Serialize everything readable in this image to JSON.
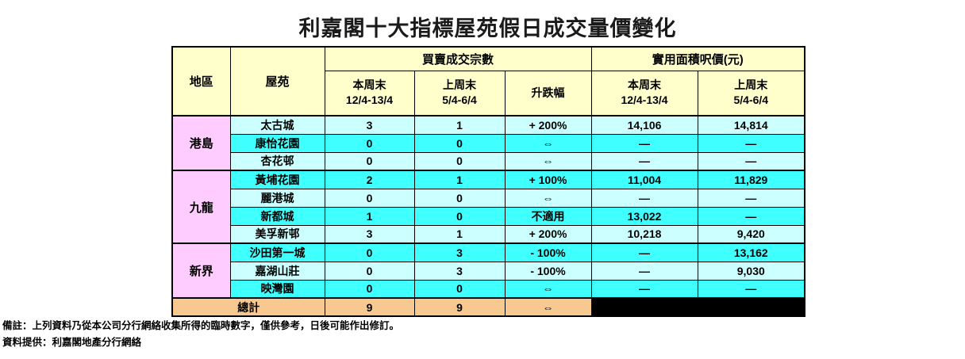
{
  "chart_data": {
    "type": "table",
    "title": "利嘉閣十大指標屋苑假日成交量價變化",
    "headers": {
      "region": "地區",
      "estate": "屋苑",
      "transactions_group": "買賣成交宗數",
      "price_group": "實用面積呎價(元)",
      "this_weekend": "本周末",
      "this_weekend_dates": "12/4-13/4",
      "last_weekend": "上周末",
      "last_weekend_dates": "5/4-6/4",
      "change": "升跌幅"
    },
    "groups": [
      {
        "region": "港島",
        "rows": [
          {
            "estate": "太古城",
            "count_this": "3",
            "count_last": "1",
            "change": "+ 200%",
            "price_this": "14,106",
            "price_last": "14,814"
          },
          {
            "estate": "康怡花園",
            "count_this": "0",
            "count_last": "0",
            "change": "⇔",
            "price_this": "—",
            "price_last": "—"
          },
          {
            "estate": "杏花邨",
            "count_this": "0",
            "count_last": "0",
            "change": "⇔",
            "price_this": "—",
            "price_last": "—"
          }
        ]
      },
      {
        "region": "九龍",
        "rows": [
          {
            "estate": "黃埔花園",
            "count_this": "2",
            "count_last": "1",
            "change": "+ 100%",
            "price_this": "11,004",
            "price_last": "11,829"
          },
          {
            "estate": "麗港城",
            "count_this": "0",
            "count_last": "0",
            "change": "⇔",
            "price_this": "—",
            "price_last": "—"
          },
          {
            "estate": "新都城",
            "count_this": "1",
            "count_last": "0",
            "change": "不適用",
            "price_this": "13,022",
            "price_last": "—"
          },
          {
            "estate": "美孚新邨",
            "count_this": "3",
            "count_last": "1",
            "change": "+ 200%",
            "price_this": "10,218",
            "price_last": "9,420"
          }
        ]
      },
      {
        "region": "新界",
        "rows": [
          {
            "estate": "沙田第一城",
            "count_this": "0",
            "count_last": "3",
            "change": "- 100%",
            "price_this": "—",
            "price_last": "13,162"
          },
          {
            "estate": "嘉湖山莊",
            "count_this": "0",
            "count_last": "3",
            "change": "- 100%",
            "price_this": "—",
            "price_last": "9,030"
          },
          {
            "estate": "映灣園",
            "count_this": "0",
            "count_last": "0",
            "change": "⇔",
            "price_this": "—",
            "price_last": "—"
          }
        ]
      }
    ],
    "total": {
      "label": "總計",
      "count_this": "9",
      "count_last": "9",
      "change": "⇔"
    }
  },
  "footnotes": [
    "備註：上列資料乃從本公司分行網絡收集所得的臨時數字，僅供參考，日後可能作出修訂。",
    "資料提供：利嘉閣地產分行網絡"
  ],
  "colors": {
    "header_bg": "#FFFFCC",
    "region_bg": "#FFCCFF",
    "row_light": "#CCFFFF",
    "row_bright": "#40FFFF",
    "total_bg": "#F7C88F",
    "blank_bg": "#000000",
    "border": "#000000"
  }
}
